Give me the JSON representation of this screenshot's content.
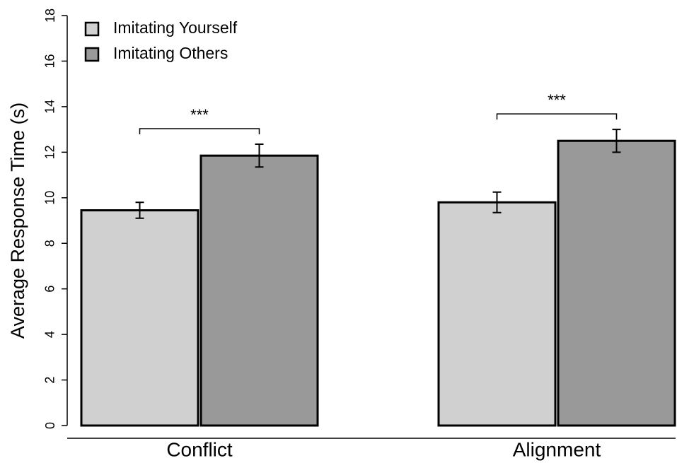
{
  "chart_data": {
    "type": "bar",
    "ylabel": "Average Response Time (s)",
    "categories": [
      "Conflict",
      "Alignment"
    ],
    "series": [
      {
        "name": "Imitating Yourself",
        "color": "#d0d0d0",
        "values": [
          9.45,
          9.8
        ],
        "errors": [
          0.35,
          0.45
        ]
      },
      {
        "name": "Imitating Others",
        "color": "#999999",
        "values": [
          11.85,
          12.5
        ],
        "errors": [
          0.5,
          0.5
        ]
      }
    ],
    "annotations": [
      "***",
      "***"
    ],
    "ylim": [
      0,
      18
    ],
    "yticks": [
      0,
      2,
      4,
      6,
      8,
      10,
      12,
      14,
      16,
      18
    ],
    "legend": "upper-left"
  }
}
